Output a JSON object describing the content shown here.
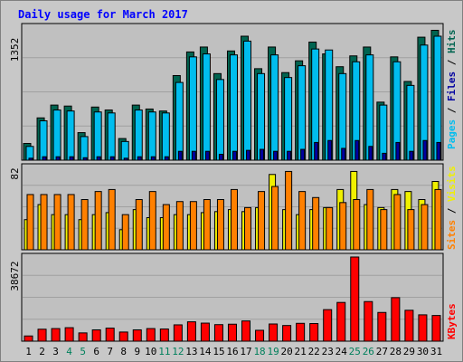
{
  "chart_data": [
    {
      "type": "bar",
      "title": "Daily usage for March 2017",
      "categories": [
        "1",
        "2",
        "3",
        "4",
        "5",
        "6",
        "7",
        "8",
        "9",
        "10",
        "11",
        "12",
        "13",
        "14",
        "15",
        "16",
        "17",
        "18",
        "19",
        "20",
        "21",
        "22",
        "23",
        "24",
        "25",
        "26",
        "27",
        "28",
        "29",
        "30",
        "31"
      ],
      "weekend_days": [
        "4",
        "5",
        "11",
        "12",
        "18",
        "19",
        "25",
        "26"
      ],
      "ymax_label": "1352",
      "ylim": [
        0,
        1352
      ],
      "right_label": [
        "Pages",
        "Files",
        "Hits"
      ],
      "series": [
        {
          "name": "Hits",
          "color": "#006450",
          "values": [
            170,
            430,
            560,
            550,
            280,
            540,
            510,
            220,
            560,
            520,
            500,
            860,
            1100,
            1150,
            880,
            1110,
            1260,
            930,
            1150,
            890,
            1010,
            1200,
            1080,
            950,
            1060,
            1150,
            590,
            1050,
            800,
            1250,
            1320
          ]
        },
        {
          "name": "Files",
          "color": "#00bdee",
          "values": [
            140,
            400,
            510,
            500,
            240,
            490,
            480,
            190,
            510,
            490,
            480,
            790,
            1050,
            1080,
            820,
            1070,
            1210,
            880,
            1070,
            840,
            960,
            1130,
            1120,
            880,
            1000,
            1070,
            560,
            1000,
            760,
            1170,
            1260
          ]
        },
        {
          "name": "Pages",
          "color": "#0000a0",
          "values": [
            20,
            35,
            35,
            35,
            25,
            35,
            35,
            20,
            35,
            35,
            35,
            90,
            90,
            90,
            60,
            90,
            100,
            110,
            90,
            90,
            110,
            180,
            200,
            120,
            200,
            140,
            70,
            180,
            90,
            200,
            180
          ]
        }
      ]
    },
    {
      "type": "bar",
      "categories": [
        "1",
        "2",
        "3",
        "4",
        "5",
        "6",
        "7",
        "8",
        "9",
        "10",
        "11",
        "12",
        "13",
        "14",
        "15",
        "16",
        "17",
        "18",
        "19",
        "20",
        "21",
        "22",
        "23",
        "24",
        "25",
        "26",
        "27",
        "28",
        "29",
        "30",
        "31"
      ],
      "ymax_label": "82",
      "ylim": [
        0,
        82
      ],
      "right_label": [
        "Sites",
        "Visits"
      ],
      "series": [
        {
          "name": "Visits",
          "color": "#f0f000",
          "values": [
            30,
            45,
            35,
            35,
            30,
            35,
            37,
            20,
            40,
            32,
            32,
            35,
            35,
            37,
            38,
            40,
            38,
            42,
            75,
            40,
            35,
            40,
            42,
            60,
            78,
            45,
            42,
            60,
            58,
            50,
            68
          ]
        },
        {
          "name": "Sites",
          "color": "#ff8000",
          "values": [
            55,
            55,
            55,
            55,
            50,
            58,
            60,
            35,
            50,
            58,
            45,
            48,
            48,
            50,
            50,
            60,
            42,
            58,
            63,
            78,
            58,
            52,
            42,
            47,
            50,
            60,
            40,
            55,
            40,
            45,
            60
          ]
        }
      ]
    },
    {
      "type": "bar",
      "categories": [
        "1",
        "2",
        "3",
        "4",
        "5",
        "6",
        "7",
        "8",
        "9",
        "10",
        "11",
        "12",
        "13",
        "14",
        "15",
        "16",
        "17",
        "18",
        "19",
        "20",
        "21",
        "22",
        "23",
        "24",
        "25",
        "26",
        "27",
        "28",
        "29",
        "30",
        "31"
      ],
      "ymax_label": "38672",
      "ylim": [
        0,
        38672
      ],
      "right_label": [
        "KBytes"
      ],
      "series": [
        {
          "name": "KBytes",
          "color": "#ff0000",
          "values": [
            2400,
            5500,
            5800,
            6200,
            3800,
            5200,
            6000,
            4200,
            5200,
            5800,
            5600,
            7500,
            8900,
            8300,
            7600,
            7800,
            9300,
            5000,
            7900,
            7200,
            8200,
            8100,
            14500,
            17800,
            38672,
            18200,
            13200,
            20000,
            14200,
            12100,
            11800
          ]
        }
      ]
    }
  ],
  "colors": {
    "page_bg": "#c8c8c8",
    "plot_bg": "#c0c0c0",
    "title": "#0000ff",
    "axis_text": "#000000",
    "weekend_text": "#00805c",
    "border": "#808080"
  }
}
